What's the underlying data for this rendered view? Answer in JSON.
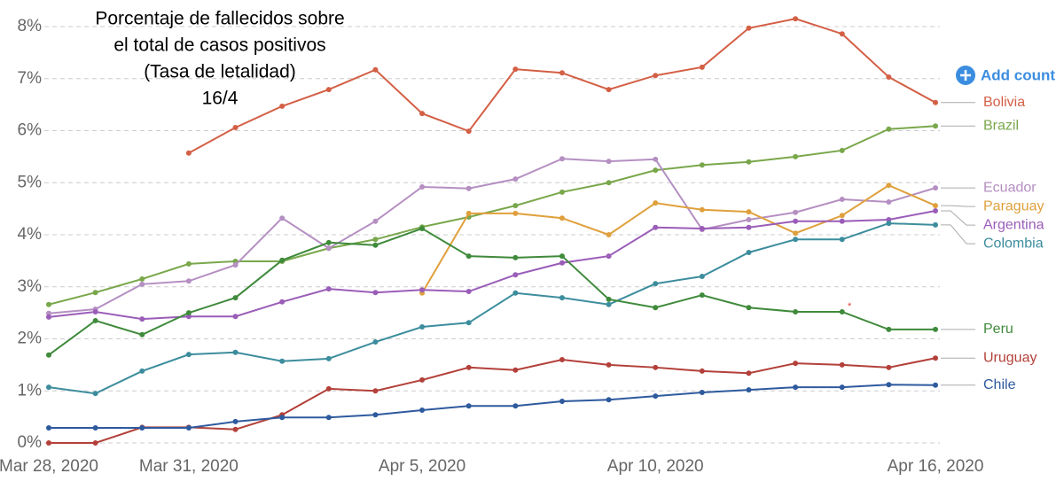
{
  "chart_data": {
    "type": "line",
    "title": [
      "Porcentaje de fallecidos sobre",
      "el total de casos positivos",
      "(Tasa de letalidad)",
      "16/4"
    ],
    "button": "Add count",
    "note": "*",
    "categories": [
      "Mar 28, 2020",
      null,
      null,
      "Mar 31, 2020",
      null,
      null,
      null,
      null,
      "Apr 5, 2020",
      null,
      null,
      null,
      null,
      "Apr 10, 2020",
      null,
      null,
      null,
      null,
      null,
      "Apr 16, 2020"
    ],
    "ylim": [
      0,
      8
    ],
    "yticks": [
      {
        "value": 0,
        "label": "0%"
      },
      {
        "value": 1,
        "label": "1%"
      },
      {
        "value": 2,
        "label": "2%"
      },
      {
        "value": 3,
        "label": "3%"
      },
      {
        "value": 4,
        "label": "4%"
      },
      {
        "value": 5,
        "label": "5%"
      },
      {
        "value": 6,
        "label": "6%"
      },
      {
        "value": 7,
        "label": "7%"
      },
      {
        "value": 8,
        "label": "8%"
      }
    ],
    "grid": true,
    "series": [
      {
        "name": "Bolivia",
        "color": "#d35f45",
        "values": [
          null,
          null,
          null,
          5.57,
          6.06,
          6.47,
          6.79,
          7.17,
          6.33,
          5.99,
          7.18,
          7.11,
          6.79,
          7.06,
          7.22,
          7.97,
          8.15,
          7.86,
          7.03,
          6.54
        ]
      },
      {
        "name": "Brazil",
        "color": "#79a74b",
        "values": [
          2.66,
          2.89,
          3.15,
          3.44,
          3.49,
          3.49,
          3.74,
          3.91,
          4.15,
          4.34,
          4.56,
          4.82,
          5.0,
          5.24,
          5.34,
          5.4,
          5.5,
          5.62,
          6.03,
          6.09
        ]
      },
      {
        "name": "Ecuador",
        "color": "#b58fc2",
        "values": [
          2.49,
          2.57,
          3.05,
          3.11,
          3.42,
          4.32,
          3.74,
          4.26,
          4.92,
          4.89,
          5.07,
          5.46,
          5.41,
          5.45,
          4.1,
          4.29,
          4.43,
          4.68,
          4.63,
          4.9
        ]
      },
      {
        "name": "Paraguay",
        "color": "#dfa03c",
        "values": [
          null,
          null,
          null,
          null,
          null,
          null,
          null,
          null,
          2.88,
          4.41,
          4.41,
          4.32,
          4.0,
          4.61,
          4.48,
          4.44,
          4.03,
          4.37,
          4.95,
          4.56
        ]
      },
      {
        "name": "Argentina",
        "color": "#9a5db8",
        "values": [
          2.42,
          2.52,
          2.38,
          2.43,
          2.43,
          2.71,
          2.96,
          2.89,
          2.94,
          2.91,
          3.23,
          3.46,
          3.59,
          4.14,
          4.12,
          4.14,
          4.26,
          4.26,
          4.29,
          4.46
        ]
      },
      {
        "name": "Colombia",
        "color": "#3c8d9d",
        "values": [
          1.07,
          0.95,
          1.38,
          1.7,
          1.74,
          1.57,
          1.62,
          1.94,
          2.23,
          2.31,
          2.88,
          2.79,
          2.66,
          3.06,
          3.2,
          3.66,
          3.91,
          3.91,
          4.22,
          4.19
        ]
      },
      {
        "name": "Peru",
        "color": "#3f8a3b",
        "values": [
          1.69,
          2.35,
          2.08,
          2.5,
          2.79,
          3.51,
          3.85,
          3.8,
          4.12,
          3.59,
          3.56,
          3.59,
          2.76,
          2.6,
          2.84,
          2.6,
          2.52,
          2.52,
          2.18,
          2.18
        ]
      },
      {
        "name": "Uruguay",
        "color": "#b3403a",
        "values": [
          0,
          0,
          0.3,
          0.3,
          0.26,
          0.54,
          1.04,
          1.0,
          1.21,
          1.45,
          1.4,
          1.6,
          1.5,
          1.45,
          1.38,
          1.34,
          1.53,
          1.5,
          1.45,
          1.63
        ]
      },
      {
        "name": "Chile",
        "color": "#2e5a9e",
        "values": [
          0.29,
          0.29,
          0.29,
          0.29,
          0.41,
          0.49,
          0.49,
          0.54,
          0.63,
          0.71,
          0.71,
          0.8,
          0.83,
          0.9,
          0.97,
          1.02,
          1.07,
          1.07,
          1.12,
          1.11
        ]
      }
    ]
  }
}
